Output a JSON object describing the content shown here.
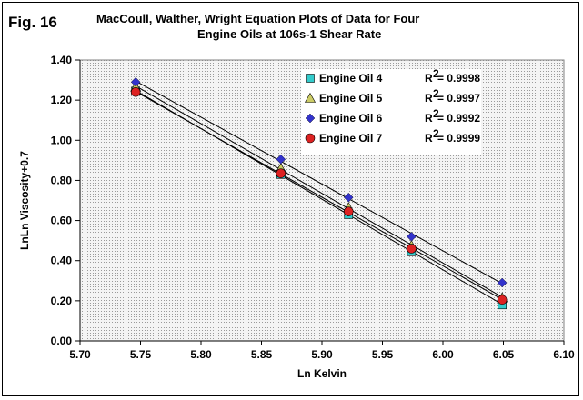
{
  "figure_label": "Fig. 16",
  "chart_data": {
    "type": "scatter",
    "title_line1": "MacCoull, Walther, Wright Equation Plots of  Data for Four",
    "title_line2": "Engine Oils at 106s-1 Shear Rate",
    "xlabel": "Ln Kelvin",
    "ylabel": "LnLn Viscosity+0.7",
    "xlim": [
      5.7,
      6.1
    ],
    "ylim": [
      0.0,
      1.4
    ],
    "x_ticks": [
      "5.70",
      "5.75",
      "5.80",
      "5.85",
      "5.90",
      "5.95",
      "6.00",
      "6.05",
      "6.10"
    ],
    "y_ticks": [
      "0.00",
      "0.20",
      "0.40",
      "0.60",
      "0.80",
      "1.00",
      "1.20",
      "1.40"
    ],
    "grid": "dotted background",
    "legend_position": "upper-right inside plot",
    "series": [
      {
        "name": "Engine Oil 4",
        "marker": "square",
        "color": "#33CCCC",
        "r2_label": "R",
        "r2_value": "2 = 0.9998",
        "x": [
          5.746,
          5.866,
          5.922,
          5.974,
          6.049
        ],
        "y": [
          1.245,
          0.83,
          0.63,
          0.445,
          0.18
        ]
      },
      {
        "name": "Engine Oil 5",
        "marker": "triangle",
        "color": "#CCCC66",
        "r2_label": "R",
        "r2_value": "2 = 0.9997",
        "x": [
          5.746,
          5.866,
          5.922,
          5.974,
          6.049
        ],
        "y": [
          1.265,
          0.86,
          0.665,
          0.475,
          0.215
        ]
      },
      {
        "name": "Engine Oil 6",
        "marker": "diamond",
        "color": "#3333CC",
        "r2_label": "R",
        "r2_value": "2 = 0.9992",
        "x": [
          5.746,
          5.866,
          5.922,
          5.974,
          6.049
        ],
        "y": [
          1.29,
          0.905,
          0.715,
          0.52,
          0.29
        ]
      },
      {
        "name": "Engine Oil 7",
        "marker": "circle",
        "color": "#DD2222",
        "r2_label": "R",
        "r2_value": "2 = 0.9999",
        "x": [
          5.746,
          5.866,
          5.922,
          5.974,
          6.049
        ],
        "y": [
          1.24,
          0.835,
          0.645,
          0.46,
          0.205
        ]
      }
    ]
  }
}
